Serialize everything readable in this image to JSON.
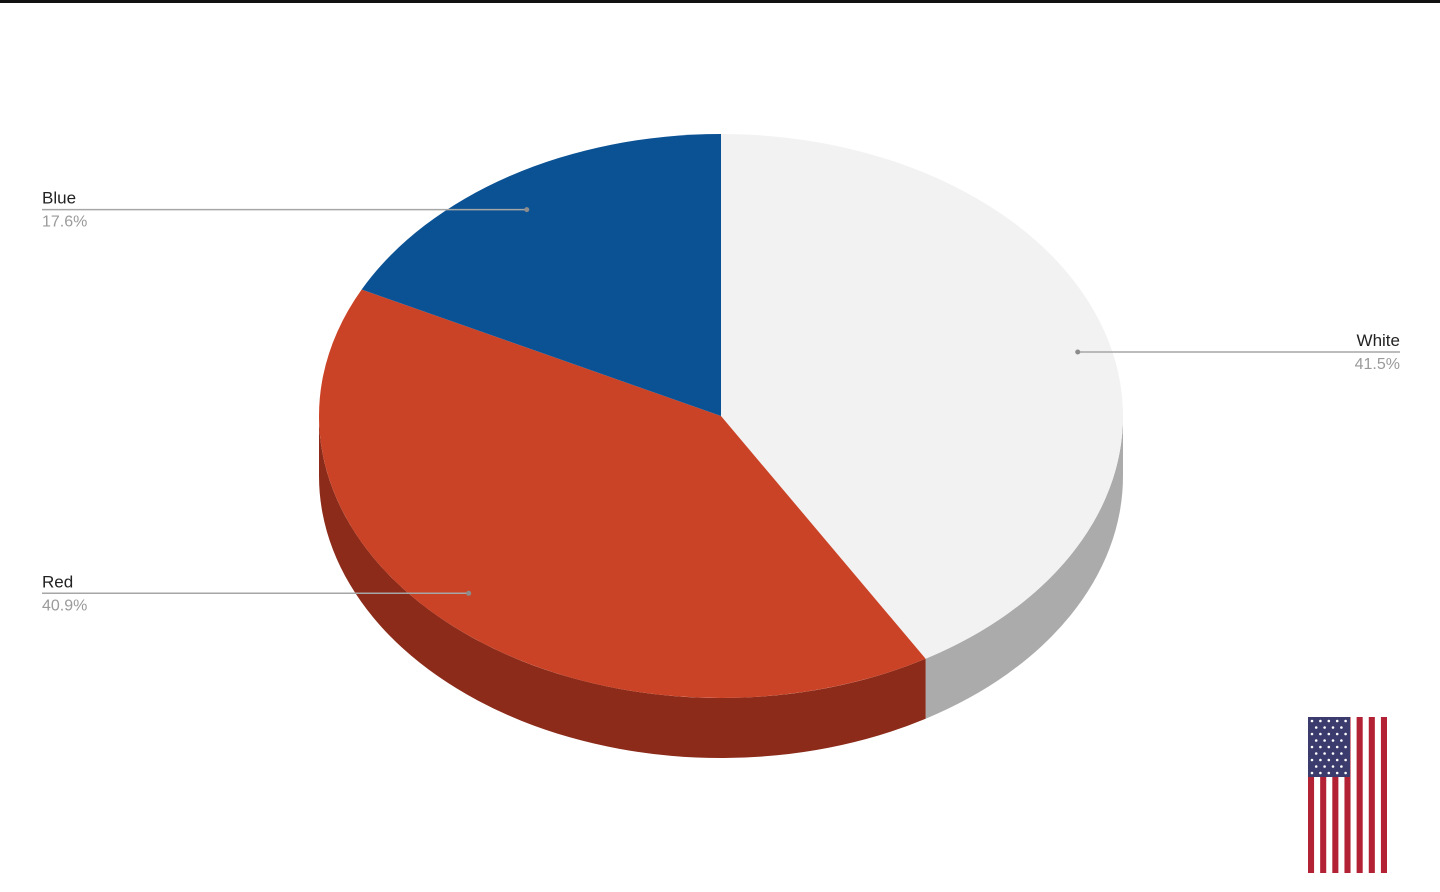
{
  "chart_data": {
    "type": "pie",
    "style": "3d",
    "title": "",
    "slices": [
      {
        "label": "White",
        "value": 41.5,
        "pct_label": "41.5%",
        "color": "#f2f2f2",
        "side_color": "#ababab"
      },
      {
        "label": "Red",
        "value": 40.9,
        "pct_label": "40.9%",
        "color": "#cb4326",
        "side_color": "#8c2b1a"
      },
      {
        "label": "Blue",
        "value": 17.6,
        "pct_label": "17.6%",
        "color": "#0b5294",
        "side_color": "#083a6a"
      }
    ],
    "legend": "none",
    "label_style": "callout"
  },
  "decoration": {
    "flag_icon": "us-flag-icon"
  }
}
